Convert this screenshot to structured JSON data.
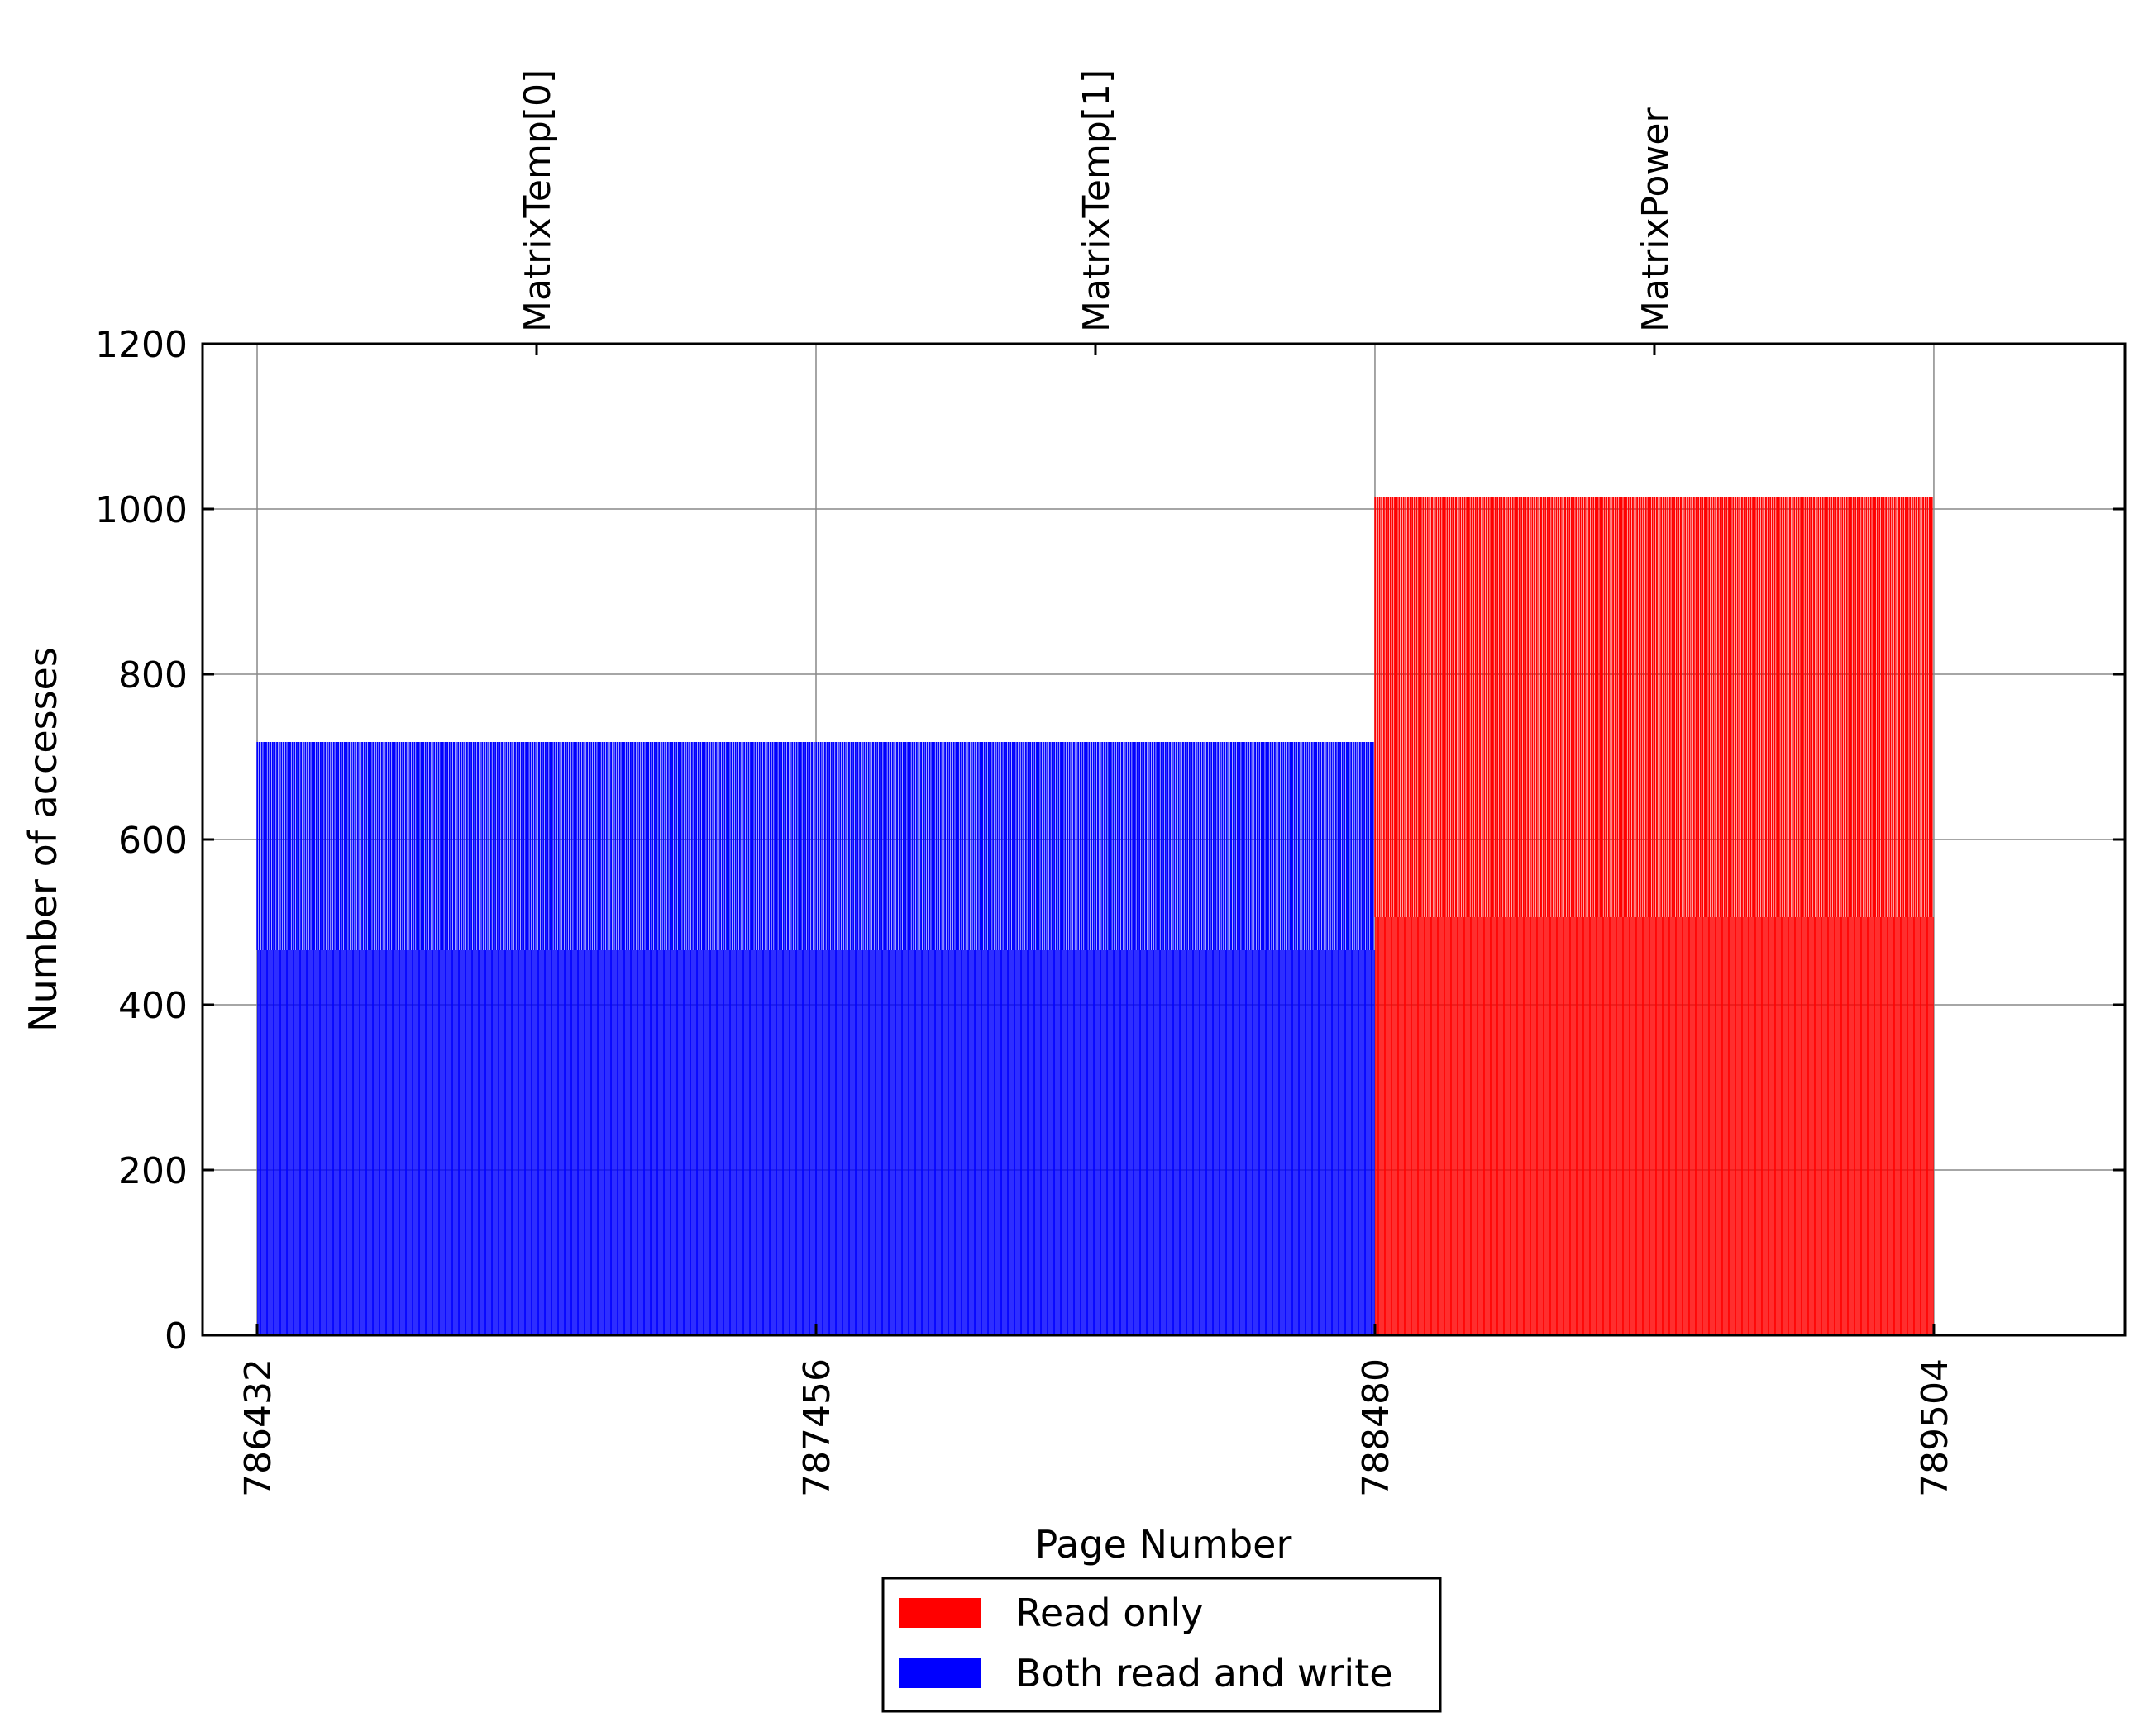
{
  "chart_data": {
    "type": "bar",
    "title": "",
    "xlabel": "Page Number",
    "ylabel": "Number of accesses",
    "xlim": [
      786332,
      789854
    ],
    "ylim": [
      0,
      1200
    ],
    "grid": true,
    "x_ticks": [
      786432,
      787456,
      788480,
      789504
    ],
    "y_ticks": [
      0,
      200,
      400,
      600,
      800,
      1000,
      1200
    ],
    "top_axis": {
      "ticks": [
        786944,
        787968,
        788992
      ],
      "labels": [
        "MatrixTemp[0]",
        "MatrixTemp[1]",
        "MatrixPower"
      ]
    },
    "legend": {
      "placement": "bottom-center",
      "entries": [
        {
          "label": "Read only",
          "color": "#ff0000"
        },
        {
          "label": "Both read and write",
          "color": "#0000ff"
        }
      ]
    },
    "series": [
      {
        "name": "Both read and write",
        "color": "#0000ff",
        "x_range": [
          786432,
          788480
        ],
        "bar_values": [
          718,
          466
        ],
        "bar_pattern": "alternating; about 1 in 4 pages reaches 718, the rest reach 466"
      },
      {
        "name": "Read only",
        "color": "#ff0000",
        "x_range": [
          788480,
          789504
        ],
        "bar_values": [
          1015,
          506
        ],
        "bar_pattern": "alternating; about 1 in 4 pages reaches 1015, the rest reach 506"
      }
    ]
  }
}
